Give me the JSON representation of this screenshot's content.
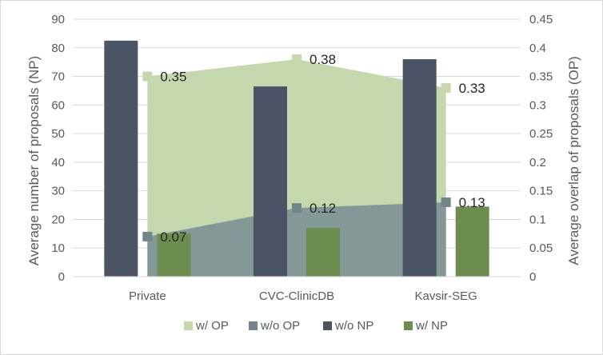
{
  "chart_data": {
    "type": "bar",
    "categories": [
      "Private",
      "CVC-ClinicDB",
      "Kavsir-SEG"
    ],
    "ylabel": "Average number of proposals (NP)",
    "y2label": "Average overlap of proposals (OP)",
    "ylim": [
      0,
      90
    ],
    "y2lim": [
      0,
      0.45
    ],
    "yticks": [
      0,
      10,
      20,
      30,
      40,
      50,
      60,
      70,
      80,
      90
    ],
    "y2ticks": [
      0,
      0.05,
      0.1,
      0.15,
      0.2,
      0.25,
      0.3,
      0.35,
      0.4,
      0.45
    ],
    "y2tick_labels": [
      "0",
      "0.05",
      "0.1",
      "0.15",
      "0.2",
      "0.25",
      "0.3",
      "0.35",
      "0.4",
      "0.45"
    ],
    "grid": true,
    "legend_position": "bottom",
    "series": [
      {
        "name": "w/ OP",
        "type": "area",
        "axis": "secondary",
        "values": [
          0.35,
          0.38,
          0.33
        ],
        "labels": [
          "0.35",
          "0.38",
          "0.33"
        ],
        "color": "#c5d8ad",
        "marker": "#c5d8ad"
      },
      {
        "name": "w/o OP",
        "type": "area",
        "axis": "secondary",
        "values": [
          0.07,
          0.12,
          0.13
        ],
        "labels": [
          "0.07",
          "0.12",
          "0.13"
        ],
        "color": "#7f9596",
        "marker": "#6f8788"
      },
      {
        "name": "w/o NP",
        "type": "bar",
        "axis": "primary",
        "values": [
          82.5,
          66.5,
          76.0
        ],
        "color": "#4a5465"
      },
      {
        "name": "w/ NP",
        "type": "bar",
        "axis": "primary",
        "values": [
          15.0,
          17.0,
          24.5
        ],
        "color": "#6b8e4e"
      }
    ]
  }
}
